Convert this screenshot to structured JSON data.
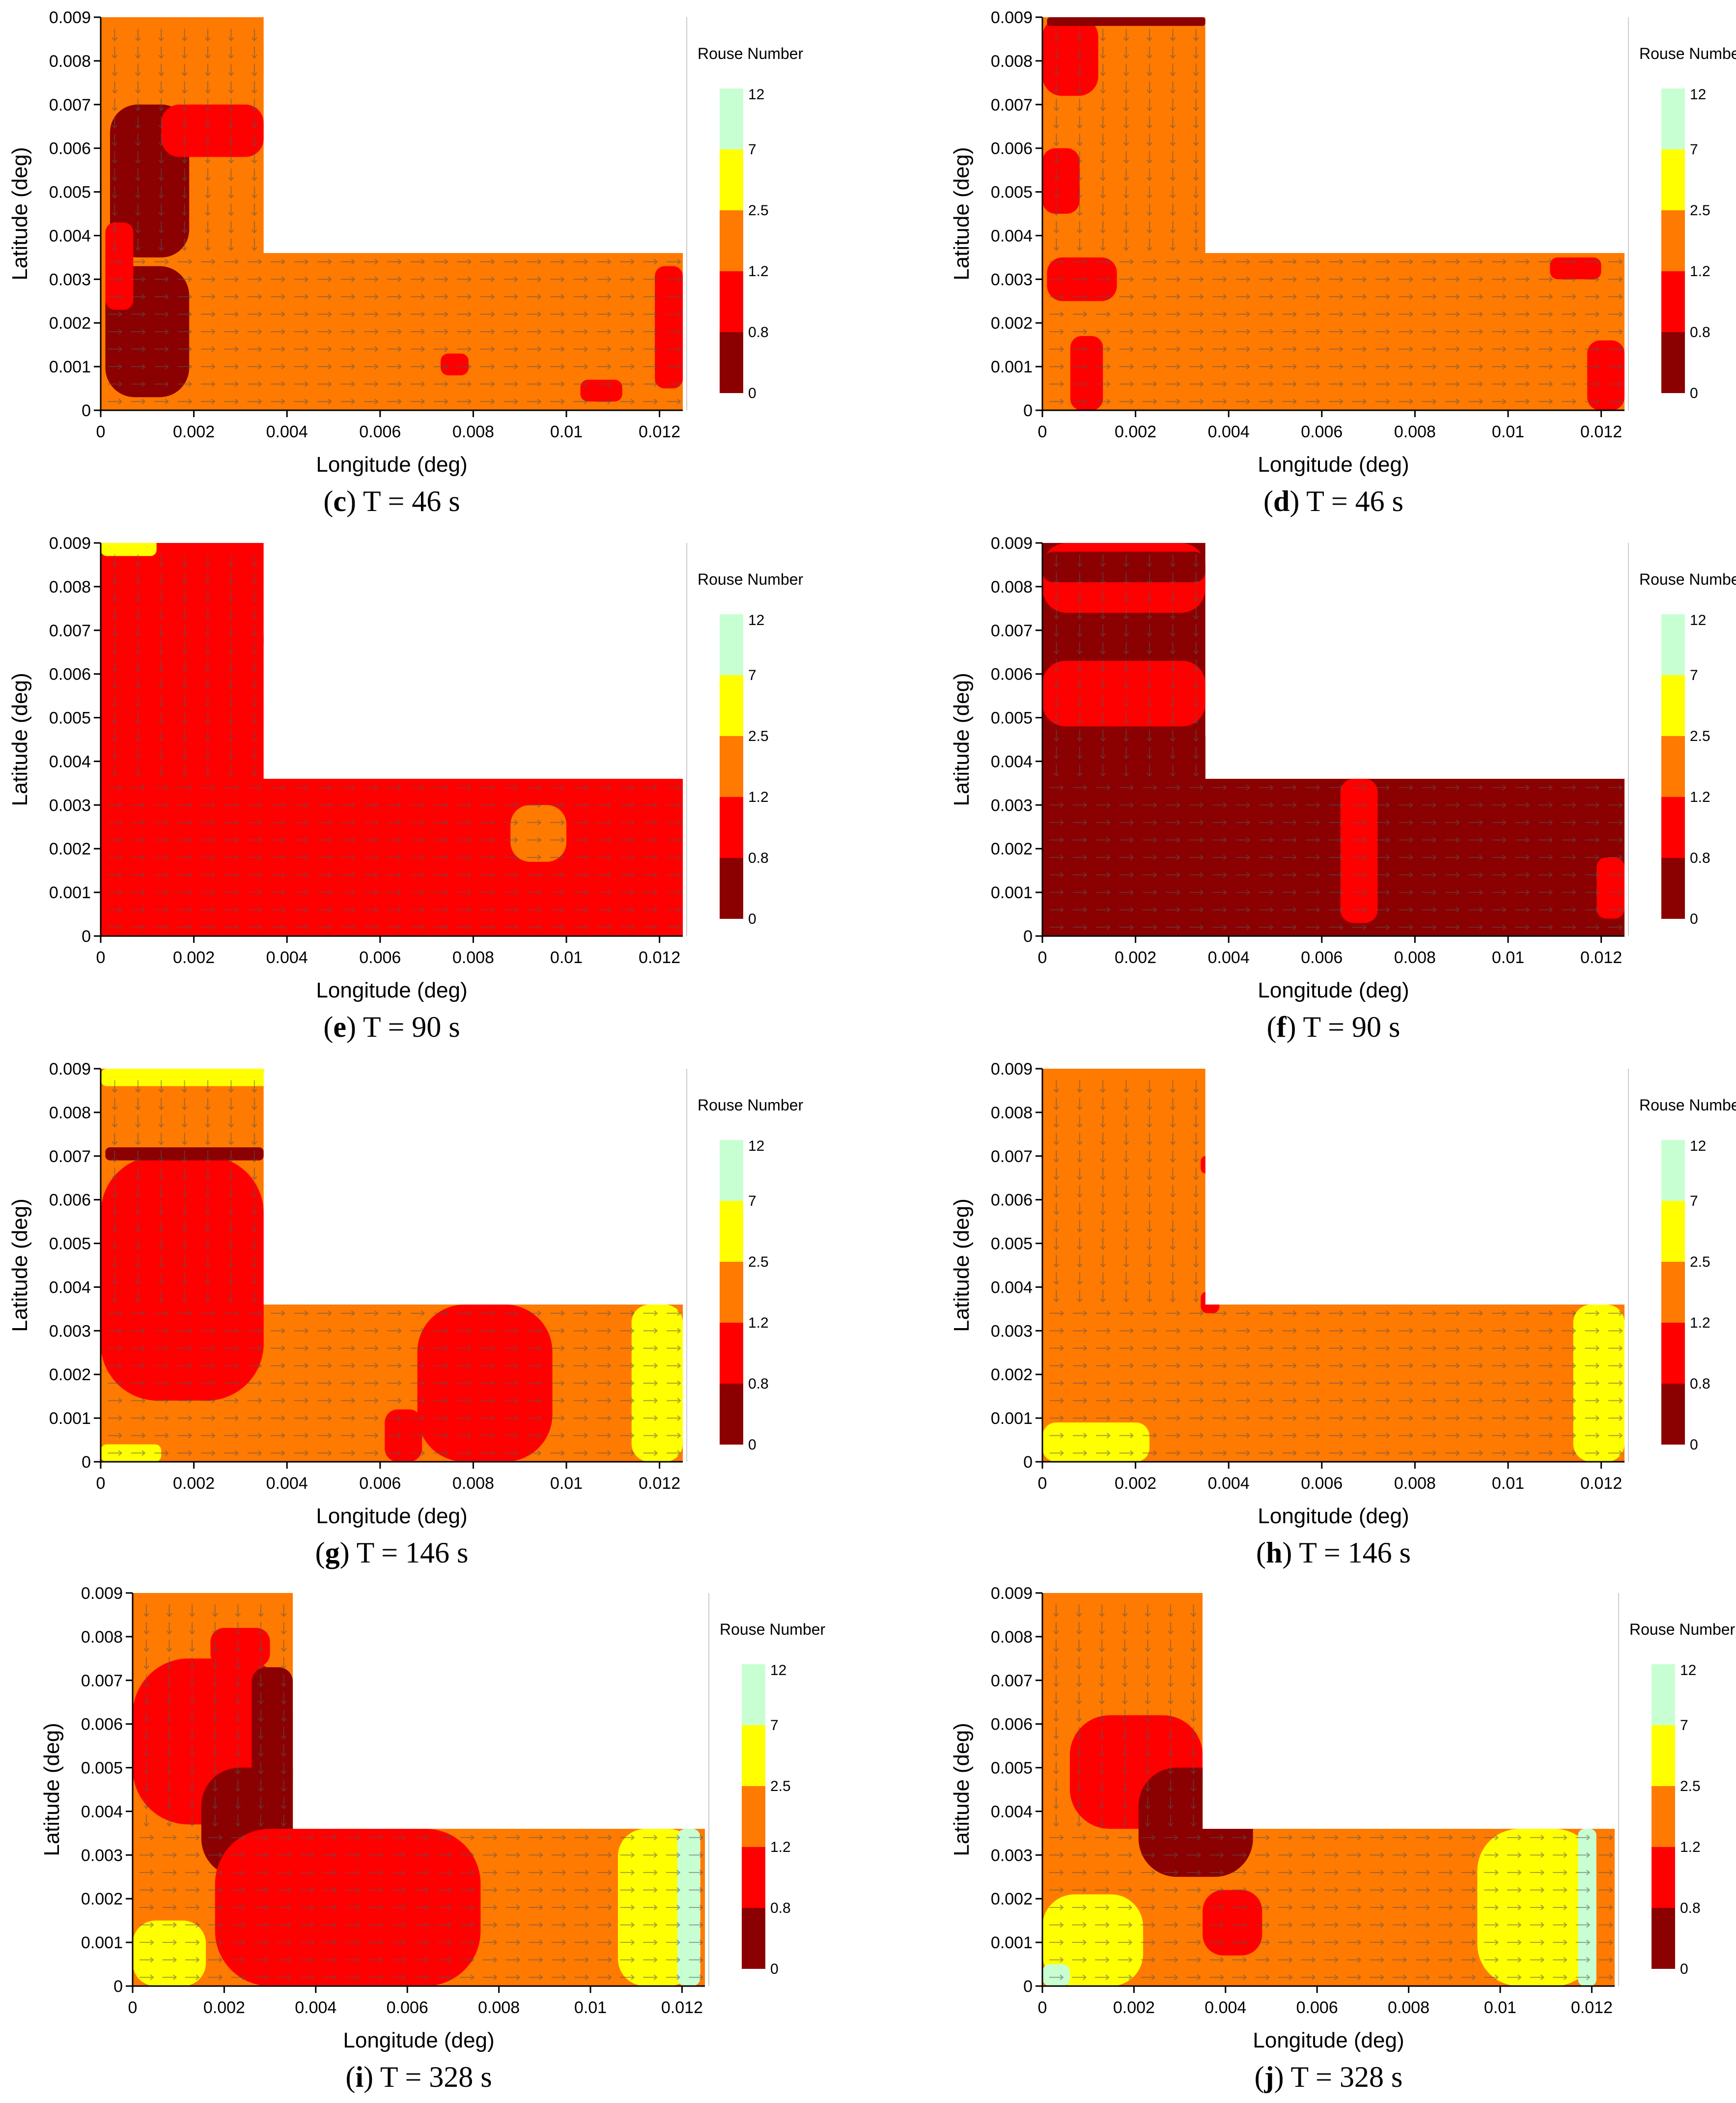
{
  "figure": {
    "panels": [
      {
        "letter": "c",
        "time_label": "T = 46 s"
      },
      {
        "letter": "d",
        "time_label": "T = 46 s"
      },
      {
        "letter": "e",
        "time_label": "T = 90 s"
      },
      {
        "letter": "f",
        "time_label": "T = 90 s"
      },
      {
        "letter": "g",
        "time_label": "T = 146 s"
      },
      {
        "letter": "h",
        "time_label": "T = 146 s"
      },
      {
        "letter": "i",
        "time_label": "T = 328 s"
      },
      {
        "letter": "j",
        "time_label": "T = 328 s"
      }
    ]
  },
  "chart_data": {
    "type": "heatmap",
    "xlabel": "Longitude (deg)",
    "ylabel": "Latitude (deg)",
    "xlim": [
      0,
      0.0125
    ],
    "ylim": [
      0,
      0.009
    ],
    "xticks": [
      "0",
      "0.002",
      "0.004",
      "0.006",
      "0.008",
      "0.01",
      "0.012"
    ],
    "yticks": [
      "0",
      "0.001",
      "0.002",
      "0.003",
      "0.004",
      "0.005",
      "0.006",
      "0.007",
      "0.008",
      "0.009"
    ],
    "domain_shape": "L-shaped channel: vertical branch x 0-0.0035, y 0-0.009; horizontal branch x 0-0.0125, y 0-0.0036",
    "legend": {
      "title": "Rouse Number",
      "bounds": [
        "0",
        "0.8",
        "1.2",
        "2.5",
        "7",
        "12"
      ],
      "colors": [
        "#8b0000",
        "#ff0000",
        "#ff7a00",
        "#ffff00",
        "#c8ffd2"
      ],
      "placement": "right"
    },
    "dominant_rouse_class": [
      {
        "panel": "c",
        "class": "1.2-2.5"
      },
      {
        "panel": "d",
        "class": "1.2-2.5"
      },
      {
        "panel": "e",
        "class": "0.8-1.2"
      },
      {
        "panel": "f",
        "class": "0-0.8"
      },
      {
        "panel": "g",
        "class": "1.2-2.5"
      },
      {
        "panel": "h",
        "class": "1.2-2.5"
      },
      {
        "panel": "i",
        "class": "1.2-2.5"
      },
      {
        "panel": "j",
        "class": "1.2-2.5"
      }
    ]
  }
}
